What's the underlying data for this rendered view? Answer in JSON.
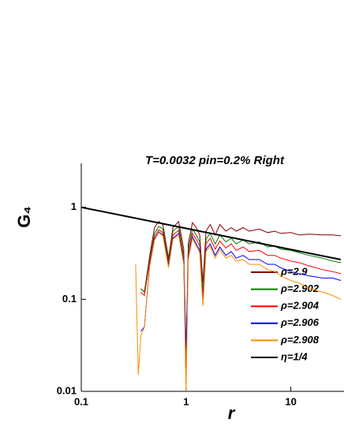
{
  "chart_data": {
    "type": "line",
    "title": "T=0.0032  pin=0.2% Right",
    "xlabel": "r",
    "ylabel": "G₄",
    "xscale": "log",
    "yscale": "log",
    "xlim": [
      0.1,
      30
    ],
    "ylim": [
      0.01,
      3
    ],
    "xticks": [
      0.1,
      1,
      10
    ],
    "yticks": [
      0.01,
      0.1,
      1
    ],
    "x": [
      0.33,
      0.35,
      0.37,
      0.4,
      0.45,
      0.5,
      0.55,
      0.6,
      0.68,
      0.75,
      0.85,
      0.95,
      1.0,
      1.05,
      1.15,
      1.25,
      1.35,
      1.45,
      1.55,
      1.7,
      1.9,
      2.1,
      2.4,
      2.7,
      3,
      3.5,
      4,
      5,
      6,
      7,
      8,
      10,
      12,
      15,
      20,
      25,
      30
    ],
    "series": [
      {
        "name": "ρ=2.9",
        "color": "#800000",
        "values": [
          null,
          null,
          0.13,
          0.12,
          0.3,
          0.6,
          0.7,
          0.65,
          0.28,
          0.6,
          0.7,
          0.35,
          0.02,
          0.4,
          0.68,
          0.6,
          0.5,
          0.15,
          0.55,
          0.65,
          0.5,
          0.65,
          0.55,
          0.6,
          0.55,
          0.6,
          0.55,
          0.58,
          0.53,
          0.55,
          0.52,
          0.53,
          0.5,
          0.51,
          0.5,
          0.5,
          0.49
        ]
      },
      {
        "name": "ρ=2.902",
        "color": "#008000",
        "values": [
          null,
          null,
          0.13,
          0.12,
          0.28,
          0.52,
          0.62,
          0.58,
          0.26,
          0.55,
          0.62,
          0.3,
          0.015,
          0.35,
          0.58,
          0.5,
          0.42,
          0.12,
          0.45,
          0.52,
          0.4,
          0.5,
          0.42,
          0.46,
          0.4,
          0.44,
          0.4,
          0.42,
          0.37,
          0.38,
          0.35,
          0.34,
          0.32,
          0.3,
          0.28,
          0.26,
          0.25
        ]
      },
      {
        "name": "ρ=2.904",
        "color": "#ff0000",
        "values": [
          null,
          null,
          0.12,
          0.11,
          0.26,
          0.48,
          0.57,
          0.53,
          0.24,
          0.5,
          0.56,
          0.27,
          0.012,
          0.31,
          0.52,
          0.45,
          0.38,
          0.1,
          0.4,
          0.46,
          0.35,
          0.43,
          0.36,
          0.4,
          0.34,
          0.37,
          0.33,
          0.34,
          0.3,
          0.3,
          0.28,
          0.26,
          0.25,
          0.23,
          0.21,
          0.2,
          0.19
        ]
      },
      {
        "name": "ρ=2.906",
        "color": "#0000ff",
        "values": [
          null,
          null,
          0.045,
          0.05,
          0.24,
          0.45,
          0.54,
          0.5,
          0.23,
          0.46,
          0.52,
          0.25,
          0.03,
          0.28,
          0.48,
          0.4,
          0.34,
          0.09,
          0.35,
          0.4,
          0.3,
          0.37,
          0.3,
          0.33,
          0.28,
          0.3,
          0.27,
          0.27,
          0.24,
          0.24,
          0.22,
          0.2,
          0.19,
          0.18,
          0.17,
          0.17,
          0.16
        ]
      },
      {
        "name": "ρ=2.908",
        "color": "#ff8c00",
        "values": [
          0.24,
          0.015,
          0.04,
          0.05,
          0.23,
          0.44,
          0.53,
          0.49,
          0.22,
          0.45,
          0.5,
          0.24,
          0.01,
          0.27,
          0.46,
          0.38,
          0.32,
          0.085,
          0.33,
          0.38,
          0.28,
          0.35,
          0.28,
          0.3,
          0.26,
          0.27,
          0.24,
          0.24,
          0.21,
          0.2,
          0.18,
          0.16,
          0.15,
          0.13,
          0.12,
          0.11,
          0.1
        ]
      },
      {
        "name": "η=1/4",
        "color": "#000000",
        "x": [
          0.1,
          30
        ],
        "values": [
          1,
          0.27
        ]
      }
    ]
  }
}
